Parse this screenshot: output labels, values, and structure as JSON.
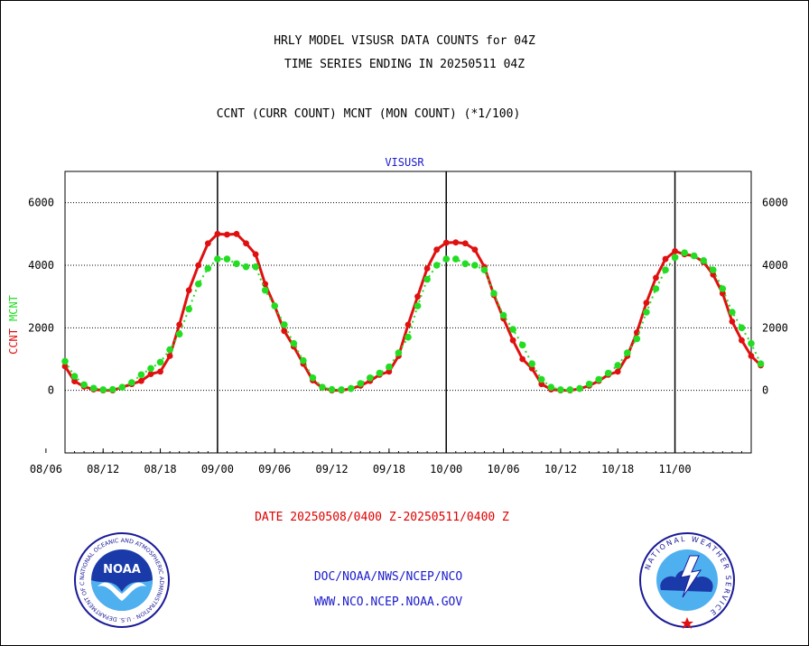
{
  "header": {
    "line1": "HRLY MODEL VISUSR DATA COUNTS for 04Z",
    "line2": "TIME SERIES ENDING IN 20250511 04Z",
    "line3": "CCNT (CURR COUNT) MCNT (MON COUNT) (*1/100)"
  },
  "footer": {
    "date_range": "DATE 20250508/0400 Z-20250511/0400 Z",
    "link1": "DOC/NOAA/NWS/NCEP/NCO",
    "link2": "WWW.NCO.NCEP.NOAA.GOV",
    "noaa_logo_text": "NOAA",
    "noaa_ring_text": "NATIONAL OCEANIC AND ATMOSPHERIC ADMINISTRATION · U.S. DEPARTMENT OF COMMERCE",
    "nws_ring_text": "NATIONAL WEATHER SERVICE"
  },
  "colors": {
    "ccnt": "#e01010",
    "mcnt": "#22dd22",
    "label_blue": "#1a1acc"
  },
  "chart_data": {
    "type": "line",
    "title": "VISUSR",
    "ylabel_parts": [
      "CCNT",
      "MCNT"
    ],
    "ylim": [
      -2000,
      7000
    ],
    "yticks": [
      0,
      2000,
      4000,
      6000
    ],
    "ytick_labels": [
      "0",
      "2000",
      "4000",
      "6000"
    ],
    "xlim": [
      4.0,
      76.0
    ],
    "xticks": [
      2,
      8,
      14,
      20,
      26,
      32,
      38,
      44,
      50,
      56,
      62,
      68
    ],
    "xtick_labels": [
      "08/06",
      "08/12",
      "08/18",
      "09/00",
      "09/06",
      "09/12",
      "09/18",
      "10/00",
      "10/06",
      "10/12",
      "10/18",
      "11/00"
    ],
    "day_boundaries": [
      20,
      44,
      68
    ],
    "grid": "horizontal-dotted",
    "legend": "left axis label",
    "x_start_hour": 4,
    "series": [
      {
        "name": "CCNT",
        "color": "#e01010",
        "values": [
          770,
          290,
          120,
          30,
          0,
          0,
          100,
          200,
          300,
          520,
          600,
          1100,
          2100,
          3200,
          4000,
          4700,
          5000,
          4980,
          5000,
          4700,
          4350,
          3400,
          2700,
          1900,
          1400,
          850,
          320,
          80,
          0,
          0,
          50,
          150,
          300,
          500,
          600,
          1100,
          2100,
          3000,
          3900,
          4500,
          4720,
          4730,
          4700,
          4500,
          3950,
          3050,
          2300,
          1600,
          1000,
          700,
          200,
          30,
          0,
          0,
          50,
          150,
          300,
          500,
          600,
          1100,
          1850,
          2800,
          3600,
          4200,
          4450,
          4350,
          4300,
          4100,
          3700,
          3100,
          2200,
          1600,
          1100,
          800
        ]
      },
      {
        "name": "MCNT",
        "color": "#22dd22",
        "values": [
          930,
          450,
          180,
          70,
          20,
          30,
          100,
          250,
          500,
          700,
          900,
          1300,
          1800,
          2600,
          3400,
          3900,
          4200,
          4200,
          4050,
          3950,
          3950,
          3200,
          2700,
          2100,
          1500,
          950,
          400,
          100,
          30,
          20,
          60,
          220,
          400,
          550,
          750,
          1200,
          1700,
          2700,
          3550,
          4000,
          4200,
          4200,
          4050,
          4000,
          3850,
          3100,
          2400,
          1950,
          1450,
          850,
          350,
          100,
          20,
          20,
          60,
          200,
          350,
          550,
          800,
          1200,
          1650,
          2500,
          3250,
          3850,
          4250,
          4400,
          4300,
          4150,
          3850,
          3250,
          2500,
          2000,
          1500,
          850
        ]
      }
    ]
  }
}
